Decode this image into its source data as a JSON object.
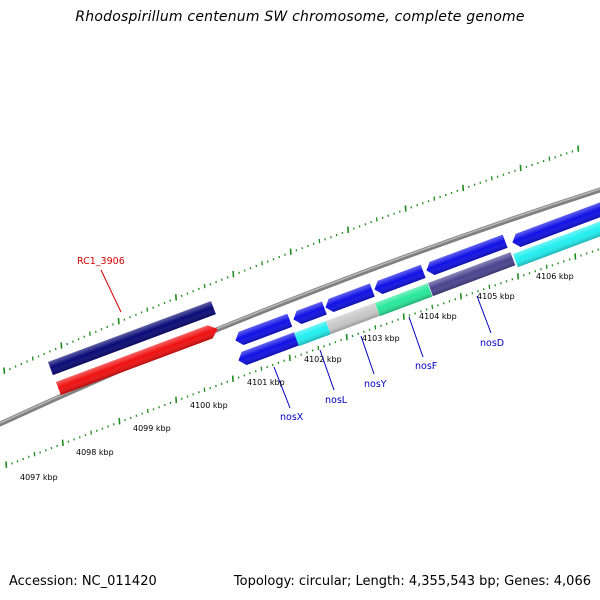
{
  "title": "Rhodospirillum centenum SW chromosome, complete genome",
  "footer": {
    "accession": "Accession: NC_011420",
    "summary": "Topology: circular; Length: 4,355,543 bp; Genes: 4,066"
  },
  "scale_labels": [
    "4097 kbp",
    "4098 kbp",
    "4099 kbp",
    "4100 kbp",
    "4101 kbp",
    "4102 kbp",
    "4103 kbp",
    "4104 kbp",
    "4105 kbp",
    "4106 kbp"
  ],
  "gene_labels": {
    "rc1_3906": "RC1_3906",
    "nosX": "nosX",
    "nosL": "nosL",
    "nosY": "nosY",
    "nosF": "nosF",
    "nosD": "nosD"
  },
  "colors": {
    "backbone": "#808080",
    "tick": "#1e8c1e",
    "gene_blue": "#1010e6",
    "gene_navy": "#0a0a78",
    "gene_red": "#f01010",
    "gene_cyan": "#22eef0",
    "gene_grey": "#c8c8c8",
    "gene_green": "#28e89a",
    "gene_slate": "#4a4490",
    "label_blue": "#0000c0",
    "label_red": "#d00000"
  }
}
